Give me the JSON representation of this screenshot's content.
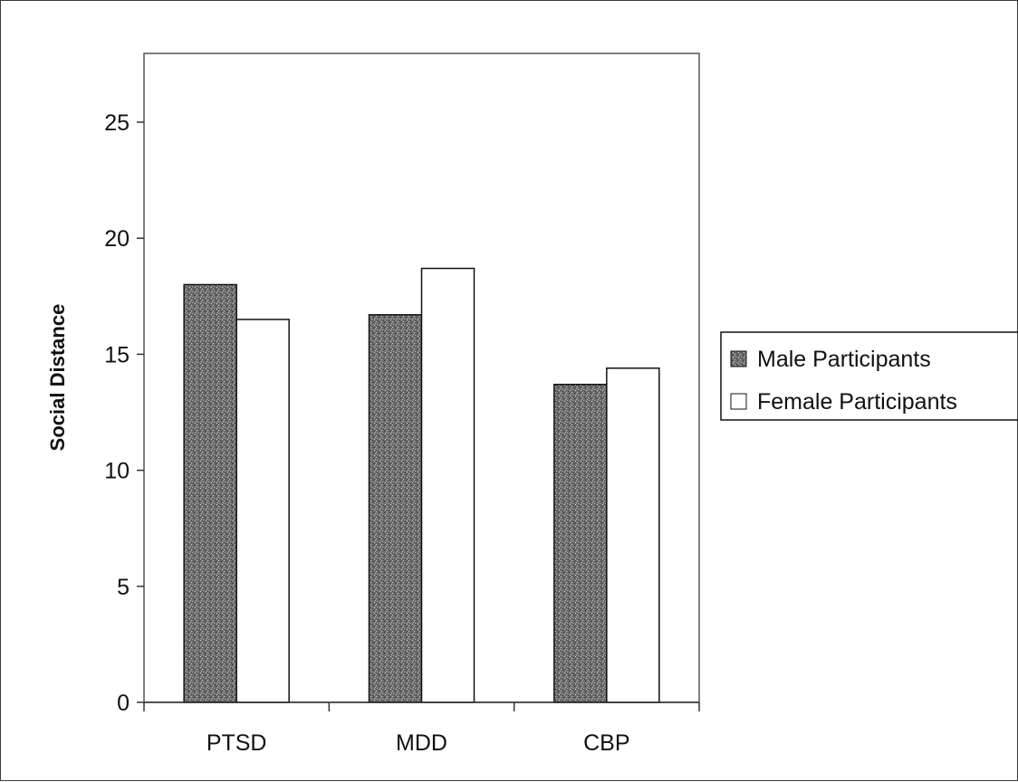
{
  "chart_data": {
    "type": "bar",
    "title": "",
    "xlabel": "",
    "ylabel": "Social Distance",
    "ylim": [
      0,
      27.5
    ],
    "yticks": [
      0,
      5,
      10,
      15,
      20,
      25
    ],
    "categories": [
      "PTSD",
      "MDD",
      "CBP"
    ],
    "series": [
      {
        "name": "Male Participants",
        "values": [
          18.0,
          16.7,
          13.7
        ],
        "color": "#6f6f6f",
        "pattern": "dark-speckled"
      },
      {
        "name": "Female Participants",
        "values": [
          16.5,
          18.7,
          14.4
        ],
        "color": "#ffffff",
        "pattern": "none"
      }
    ],
    "grid": false,
    "legend_position": "right"
  }
}
